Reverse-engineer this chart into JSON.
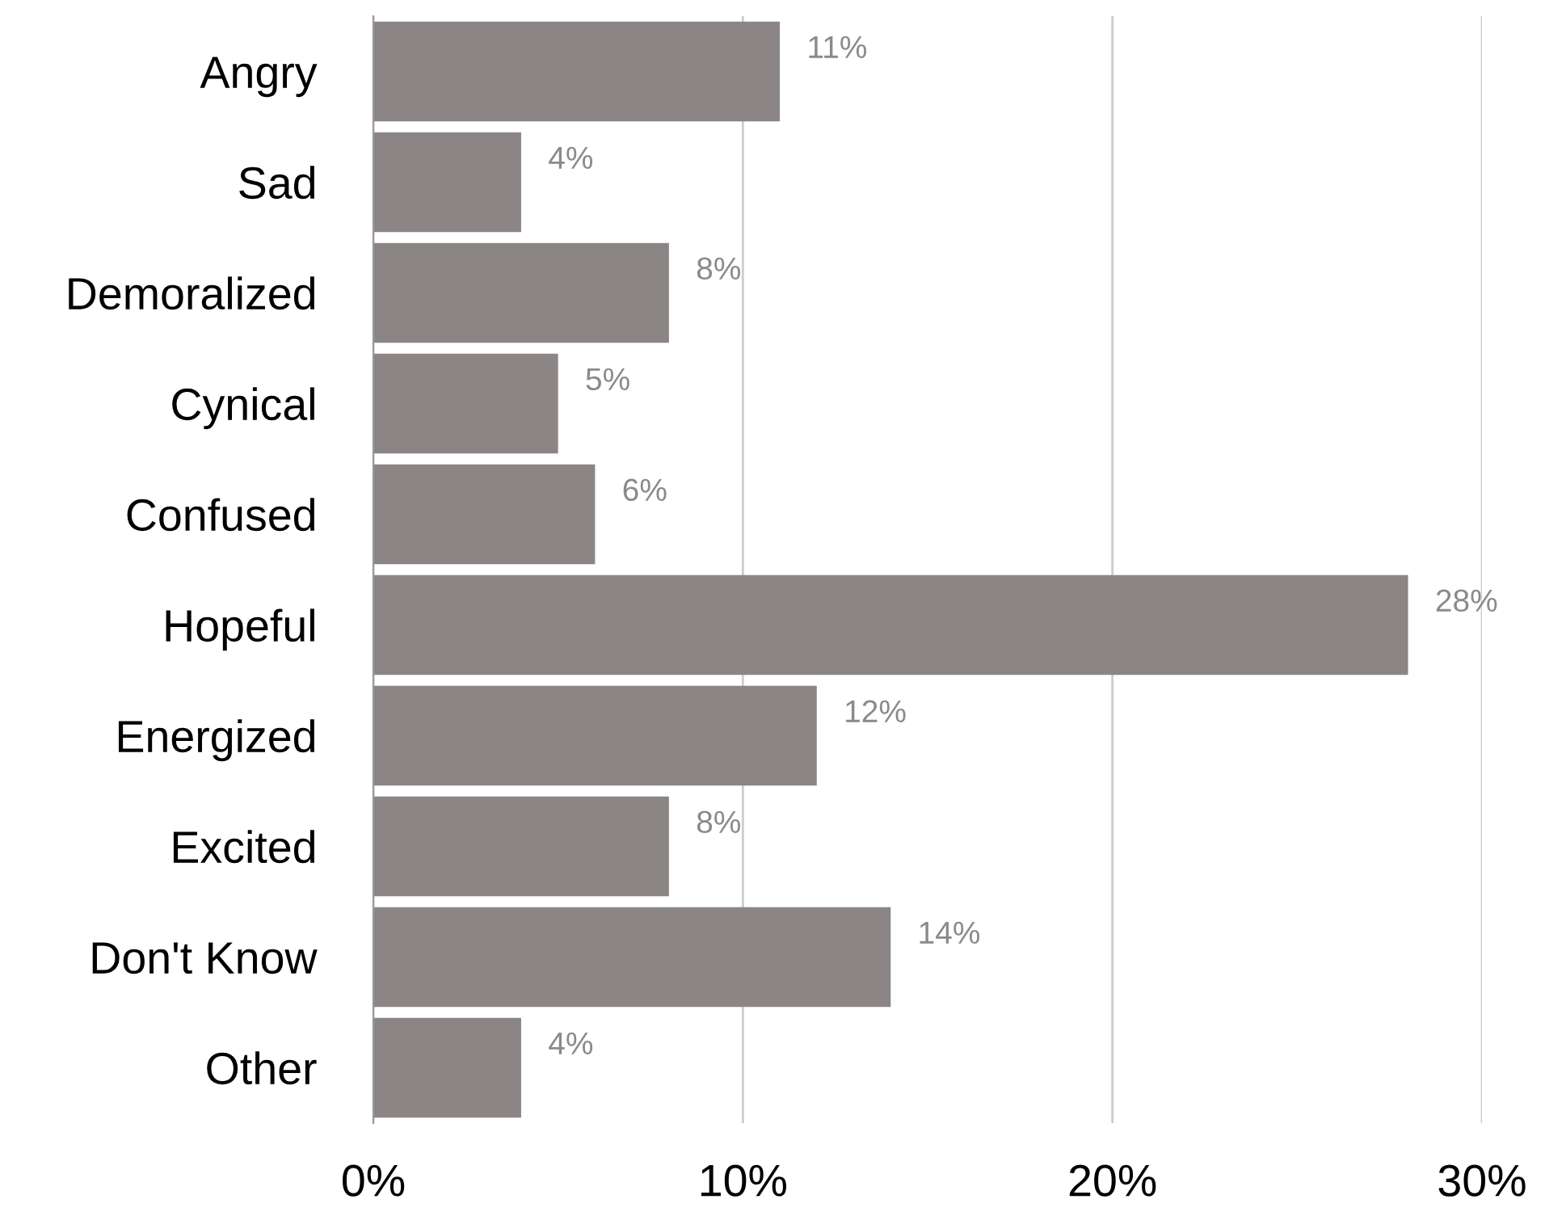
{
  "chart_data": {
    "type": "bar",
    "orientation": "horizontal",
    "categories": [
      "Angry",
      "Sad",
      "Demoralized",
      "Cynical",
      "Confused",
      "Hopeful",
      "Energized",
      "Excited",
      "Don't Know",
      "Other"
    ],
    "values": [
      11,
      4,
      8,
      5,
      6,
      28,
      12,
      8,
      14,
      4
    ],
    "value_labels": [
      "11%",
      "4%",
      "8%",
      "5%",
      "6%",
      "28%",
      "12%",
      "8%",
      "14%",
      "4%"
    ],
    "color": "#8b8685",
    "xlim": [
      0,
      30
    ],
    "xticks": [
      {
        "value": 0,
        "label": "0%"
      },
      {
        "value": 10,
        "label": "10%"
      },
      {
        "value": 20,
        "label": "20%"
      },
      {
        "value": 30,
        "label": "30%"
      }
    ],
    "grid": "x",
    "legend": false
  }
}
